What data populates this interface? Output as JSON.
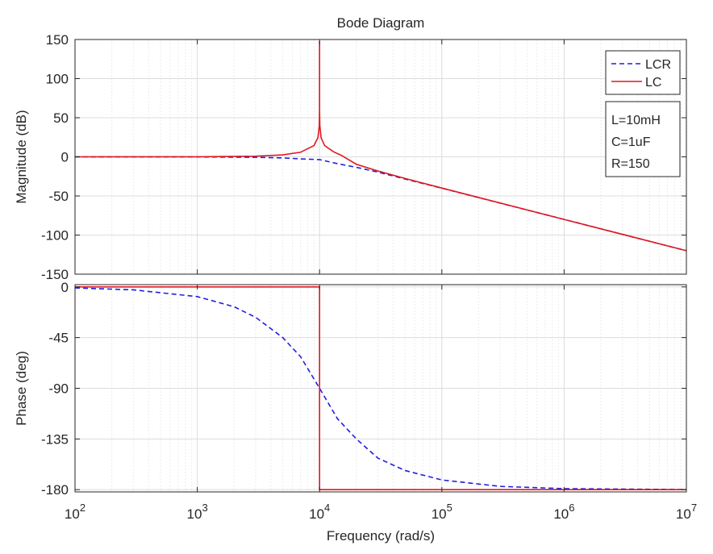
{
  "chart_data": {
    "type": "line",
    "title": "Bode Diagram",
    "xlabel": "Frequency  (rad/s)",
    "x_scale": "log",
    "xlim": [
      100,
      10000000
    ],
    "x_tick_base": "10",
    "x_tick_exponents": [
      "2",
      "3",
      "4",
      "5",
      "6",
      "7"
    ],
    "grid": true,
    "legend": {
      "position": "top-right",
      "entries": [
        "LCR",
        "LC"
      ]
    },
    "annotation": [
      "L=10mH",
      "C=1uF",
      "R=150"
    ],
    "parameters": {
      "L": 0.01,
      "C": 1e-06,
      "R": 150,
      "resonance_rad_s": 10000
    },
    "subplots": [
      {
        "name": "magnitude",
        "ylabel": "Magnitude (dB)",
        "ylim": [
          -150,
          150
        ],
        "yticks": [
          "150",
          "100",
          "50",
          "0",
          "-50",
          "-100",
          "-150"
        ],
        "series": [
          {
            "name": "LCR",
            "color": "#1f1fe0",
            "style": "dashed",
            "points": [
              [
                100,
                0
              ],
              [
                1000,
                -0.1
              ],
              [
                3000,
                -0.6
              ],
              [
                5000,
                -1.4
              ],
              [
                7000,
                -2.6
              ],
              [
                10000,
                -3.5
              ],
              [
                14000,
                -8.7
              ],
              [
                20000,
                -13.4
              ],
              [
                30000,
                -19.5
              ],
              [
                50000,
                -28.3
              ],
              [
                100000,
                -40.1
              ],
              [
                1000000,
                -80
              ],
              [
                10000000,
                -120
              ]
            ]
          },
          {
            "name": "LC",
            "color": "#e0191f",
            "style": "solid",
            "points": [
              [
                100,
                0
              ],
              [
                1000,
                0.1
              ],
              [
                3000,
                0.8
              ],
              [
                5000,
                2.5
              ],
              [
                7000,
                5.9
              ],
              [
                9000,
                14.4
              ],
              [
                9700,
                24.6
              ],
              [
                9950,
                40.1
              ],
              [
                9995,
                60
              ],
              [
                10000,
                148
              ],
              [
                10005,
                60
              ],
              [
                10050,
                40
              ],
              [
                10300,
                24.3
              ],
              [
                11000,
                14.4
              ],
              [
                13000,
                6.5
              ],
              [
                15000,
                2.1
              ],
              [
                20000,
                -9.5
              ],
              [
                30000,
                -18.1
              ],
              [
                50000,
                -27.6
              ],
              [
                100000,
                -39.9
              ],
              [
                1000000,
                -80
              ],
              [
                10000000,
                -120
              ]
            ]
          }
        ]
      },
      {
        "name": "phase",
        "ylabel": "Phase (deg)",
        "ylim": [
          -182,
          2
        ],
        "yticks": [
          "0",
          "-45",
          "-90",
          "-135",
          "-180"
        ],
        "series": [
          {
            "name": "LCR",
            "color": "#1f1fe0",
            "style": "dashed",
            "points": [
              [
                100,
                -0.9
              ],
              [
                300,
                -2.6
              ],
              [
                1000,
                -8.6
              ],
              [
                2000,
                -17.6
              ],
              [
                3000,
                -27
              ],
              [
                4000,
                -37.1
              ],
              [
                5000,
                -45
              ],
              [
                7000,
                -62
              ],
              [
                10000,
                -90
              ],
              [
                14000,
                -117
              ],
              [
                20000,
                -135
              ],
              [
                30000,
                -152
              ],
              [
                50000,
                -163
              ],
              [
                100000,
                -171.4
              ],
              [
                300000,
                -177.1
              ],
              [
                1000000,
                -179.1
              ],
              [
                10000000,
                -179.9
              ]
            ]
          },
          {
            "name": "LC",
            "color": "#e0191f",
            "style": "solid",
            "points": [
              [
                100,
                0
              ],
              [
                10000,
                0
              ],
              [
                10000,
                -180
              ],
              [
                10000000,
                -180
              ]
            ]
          }
        ]
      }
    ]
  }
}
